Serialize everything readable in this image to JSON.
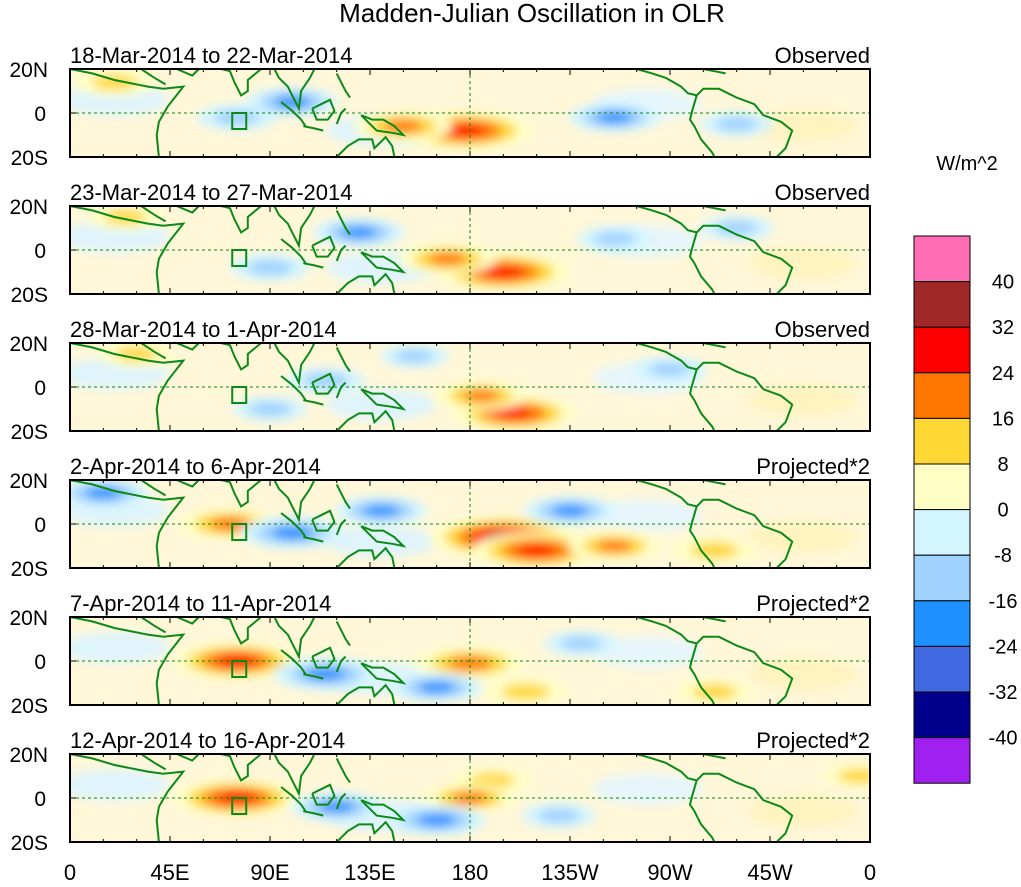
{
  "chart_data": {
    "type": "heatmap",
    "title": "Madden-Julian Oscillation in OLR",
    "units_label": "W/m^2",
    "y_ticks": [
      "20N",
      "0",
      "20S"
    ],
    "x_ticks": [
      "0",
      "45E",
      "90E",
      "135E",
      "180",
      "135W",
      "90W",
      "45W",
      "0"
    ],
    "x_range_deg": [
      0,
      360
    ],
    "y_range_deg": [
      -20,
      20
    ],
    "colorbar": {
      "levels": [
        40,
        32,
        24,
        16,
        8,
        0,
        -8,
        -16,
        -24,
        -32,
        -40
      ],
      "colors": [
        "#ff6eb4",
        "#a02828",
        "#ff0000",
        "#ff7700",
        "#ffd735",
        "#ffffc5",
        "#d3f5ff",
        "#a0d2ff",
        "#1e90ff",
        "#4169e1",
        "#00008c",
        "#a020f0"
      ]
    },
    "panels": [
      {
        "period": "18-Mar-2014 to 22-Mar-2014",
        "status": "Observed",
        "anomalies": [
          {
            "lon": 178,
            "lat": -8,
            "value": 30
          },
          {
            "lon": 150,
            "lat": -6,
            "value": 18
          },
          {
            "lon": 20,
            "lat": 14,
            "value": 12
          },
          {
            "lon": 100,
            "lat": 5,
            "value": -16
          },
          {
            "lon": 245,
            "lat": -2,
            "value": -16
          },
          {
            "lon": 75,
            "lat": -2,
            "value": -12
          },
          {
            "lon": 300,
            "lat": -5,
            "value": -10
          }
        ]
      },
      {
        "period": "23-Mar-2014 to 27-Mar-2014",
        "status": "Observed",
        "anomalies": [
          {
            "lon": 195,
            "lat": -10,
            "value": 30
          },
          {
            "lon": 170,
            "lat": -4,
            "value": 18
          },
          {
            "lon": 25,
            "lat": 15,
            "value": 10
          },
          {
            "lon": 130,
            "lat": 8,
            "value": -16
          },
          {
            "lon": 90,
            "lat": -8,
            "value": -12
          },
          {
            "lon": 300,
            "lat": 10,
            "value": -10
          },
          {
            "lon": 245,
            "lat": 5,
            "value": -10
          }
        ]
      },
      {
        "period": "28-Mar-2014 to 1-Apr-2014",
        "status": "Observed",
        "anomalies": [
          {
            "lon": 200,
            "lat": -12,
            "value": 26
          },
          {
            "lon": 185,
            "lat": -4,
            "value": 16
          },
          {
            "lon": 30,
            "lat": 15,
            "value": 10
          },
          {
            "lon": 115,
            "lat": 3,
            "value": -12
          },
          {
            "lon": 90,
            "lat": -10,
            "value": -10
          },
          {
            "lon": 270,
            "lat": 8,
            "value": -10
          },
          {
            "lon": 155,
            "lat": 14,
            "value": -8
          }
        ]
      },
      {
        "period": "2-Apr-2014 to 6-Apr-2014",
        "status": "Projected*2",
        "anomalies": [
          {
            "lon": 195,
            "lat": -6,
            "value": 34
          },
          {
            "lon": 210,
            "lat": -12,
            "value": 28
          },
          {
            "lon": 245,
            "lat": -10,
            "value": 16
          },
          {
            "lon": 72,
            "lat": 0,
            "value": 20
          },
          {
            "lon": 100,
            "lat": -4,
            "value": -20
          },
          {
            "lon": 140,
            "lat": 6,
            "value": -16
          },
          {
            "lon": 225,
            "lat": 6,
            "value": -16
          },
          {
            "lon": 15,
            "lat": 14,
            "value": -16
          },
          {
            "lon": 290,
            "lat": -12,
            "value": 14
          }
        ]
      },
      {
        "period": "7-Apr-2014 to 11-Apr-2014",
        "status": "Projected*2",
        "anomalies": [
          {
            "lon": 75,
            "lat": 0,
            "value": 28
          },
          {
            "lon": 180,
            "lat": -1,
            "value": 22
          },
          {
            "lon": 205,
            "lat": -14,
            "value": 14
          },
          {
            "lon": 115,
            "lat": -6,
            "value": -20
          },
          {
            "lon": 165,
            "lat": -12,
            "value": -16
          },
          {
            "lon": 230,
            "lat": 8,
            "value": -10
          },
          {
            "lon": 290,
            "lat": -14,
            "value": 12
          }
        ]
      },
      {
        "period": "12-Apr-2014 to 16-Apr-2014",
        "status": "Projected*2",
        "anomalies": [
          {
            "lon": 75,
            "lat": 0,
            "value": 28
          },
          {
            "lon": 190,
            "lat": 8,
            "value": 12
          },
          {
            "lon": 180,
            "lat": 0,
            "value": 16
          },
          {
            "lon": 120,
            "lat": -4,
            "value": -16
          },
          {
            "lon": 165,
            "lat": -10,
            "value": -18
          },
          {
            "lon": 220,
            "lat": -8,
            "value": -10
          },
          {
            "lon": 355,
            "lat": 10,
            "value": 10
          }
        ]
      }
    ]
  }
}
